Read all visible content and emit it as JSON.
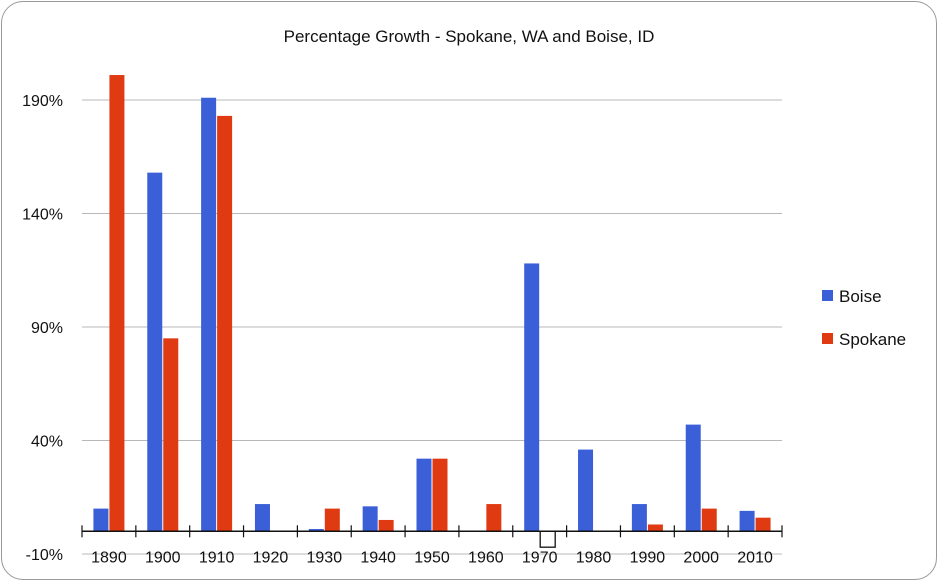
{
  "chart_data": {
    "type": "bar",
    "title": "Percentage Growth - Spokane, WA and Boise, ID",
    "categories": [
      "1890",
      "1900",
      "1910",
      "1920",
      "1930",
      "1940",
      "1950",
      "1960",
      "1970",
      "1980",
      "1990",
      "2000",
      "2010"
    ],
    "series": [
      {
        "name": "Boise",
        "color": "#3b5fd6",
        "values": [
          10,
          158,
          191,
          12,
          1,
          11,
          32,
          0,
          118,
          36,
          12,
          47,
          9
        ]
      },
      {
        "name": "Spokane",
        "color": "#e03a12",
        "values": [
          201,
          85,
          183,
          0,
          10,
          5,
          32,
          12,
          -7,
          0,
          3,
          10,
          6
        ]
      }
    ],
    "ylim": [
      -10,
      201
    ],
    "yticks": [
      "190%",
      "140%",
      "90%",
      "40%",
      "-10%"
    ],
    "ytick_values": [
      190,
      140,
      90,
      40,
      -10
    ],
    "grid": true,
    "legend_position": "right",
    "xlabel": "",
    "ylabel": ""
  }
}
